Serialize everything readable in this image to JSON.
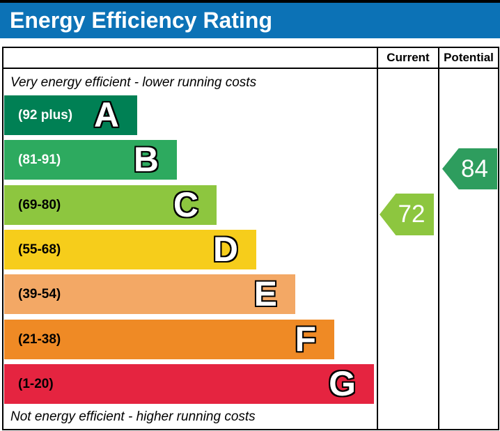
{
  "title": "Energy Efficiency Rating",
  "title_bar_color": "#0c72b6",
  "columns": {
    "current": "Current",
    "potential": "Potential"
  },
  "top_note": "Very energy efficient - lower running costs",
  "bottom_note": "Not energy efficient - higher running costs",
  "bands": [
    {
      "letter": "A",
      "range": "(92 plus)",
      "color": "#008054",
      "text_color": "#ffffff"
    },
    {
      "letter": "B",
      "range": "(81-91)",
      "color": "#2daa5f",
      "text_color": "#ffffff"
    },
    {
      "letter": "C",
      "range": "(69-80)",
      "color": "#8dc63f",
      "text_color": "#000000"
    },
    {
      "letter": "D",
      "range": "(55-68)",
      "color": "#f6cd1b",
      "text_color": "#000000"
    },
    {
      "letter": "E",
      "range": "(39-54)",
      "color": "#f3a865",
      "text_color": "#000000"
    },
    {
      "letter": "F",
      "range": "(21-38)",
      "color": "#ef8a25",
      "text_color": "#000000"
    },
    {
      "letter": "G",
      "range": "(1-20)",
      "color": "#e52440",
      "text_color": "#000000"
    }
  ],
  "current": {
    "label": "Current",
    "value": "72",
    "band": "C",
    "color": "#8dc63f"
  },
  "potential": {
    "label": "Potential",
    "value": "84",
    "band": "B",
    "color": "#2e9d5e"
  },
  "chart_data": {
    "type": "bar",
    "title": "Energy Efficiency Rating",
    "categories": [
      "A",
      "B",
      "C",
      "D",
      "E",
      "F",
      "G"
    ],
    "band_ranges": [
      "92 plus",
      "81-91",
      "69-80",
      "55-68",
      "39-54",
      "21-38",
      "1-20"
    ],
    "band_colors": [
      "#008054",
      "#2daa5f",
      "#8dc63f",
      "#f6cd1b",
      "#f3a865",
      "#ef8a25",
      "#e52440"
    ],
    "series": [
      {
        "name": "Current",
        "value": 72,
        "band": "C",
        "color": "#8dc63f"
      },
      {
        "name": "Potential",
        "value": 84,
        "band": "B",
        "color": "#2e9d5e"
      }
    ],
    "scale_min": 1,
    "scale_max": 100,
    "annotations": [
      "Very energy efficient - lower running costs",
      "Not energy efficient - higher running costs"
    ],
    "legend_position": "none",
    "grid": false
  }
}
